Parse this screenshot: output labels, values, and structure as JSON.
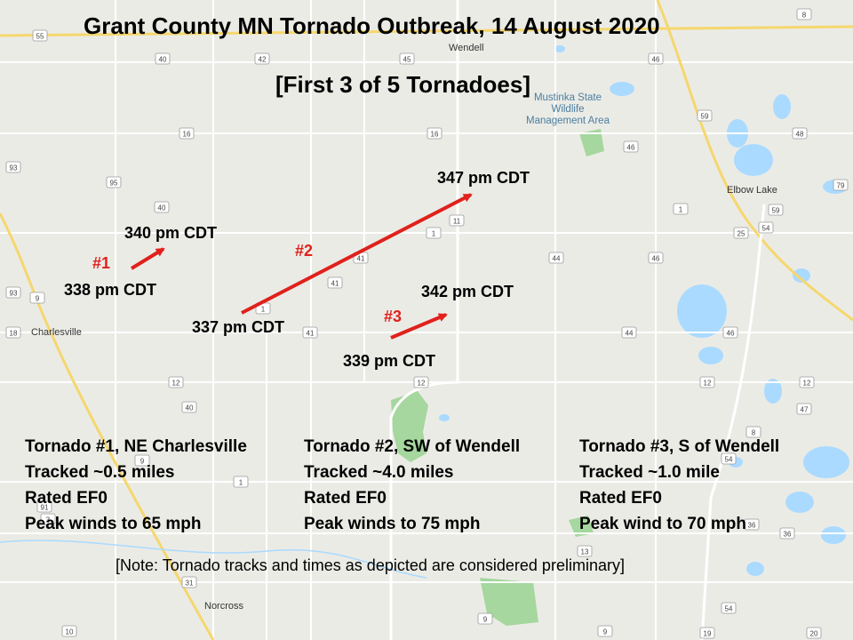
{
  "title": "Grant County MN Tornado Outbreak, 14 August 2020",
  "subtitle": "[First 3 of 5 Tornadoes]",
  "map": {
    "places": [
      "Wendell",
      "Elbow Lake",
      "Charlesville",
      "Norcross",
      "Mustinka State Wildlife Management Area"
    ],
    "road_shields": [
      "55",
      "40",
      "42",
      "45",
      "46",
      "8",
      "16",
      "16",
      "46",
      "59",
      "48",
      "93",
      "95",
      "40",
      "11",
      "1",
      "59",
      "79",
      "1",
      "25",
      "54",
      "41",
      "41",
      "44",
      "46",
      "93",
      "9",
      "18",
      "1",
      "41",
      "44",
      "46",
      "12",
      "12",
      "12",
      "12",
      "40",
      "47",
      "8",
      "9",
      "54",
      "1",
      "91",
      "3",
      "36",
      "36",
      "13",
      "31",
      "54",
      "9",
      "10",
      "9",
      "19",
      "20"
    ],
    "colors": {
      "land": "#ebebe6",
      "road": "#ffffff",
      "highway": "#f5d76e",
      "water": "#aadaff",
      "park": "#a5d79e",
      "track": "#e0211c"
    }
  },
  "tornadoes": [
    {
      "id": "#1",
      "start_time": "338 pm CDT",
      "end_time": "340 pm CDT",
      "heading": "Tornado #1, NE Charlesville",
      "tracked": "Tracked ~0.5 miles",
      "rating": "Rated EF0",
      "peak": "Peak winds to 65 mph"
    },
    {
      "id": "#2",
      "start_time": "337 pm CDT",
      "end_time": "347 pm CDT",
      "heading": "Tornado #2, SW of Wendell",
      "tracked": "Tracked ~4.0 miles",
      "rating": "Rated EF0",
      "peak": "Peak winds to 75 mph"
    },
    {
      "id": "#3",
      "start_time": "339 pm CDT",
      "end_time": "342 pm CDT",
      "heading": "Tornado #3, S of Wendell",
      "tracked": "Tracked ~1.0 mile",
      "rating": "Rated EF0",
      "peak": "Peak wind to 70 mph"
    }
  ],
  "note": "[Note: Tornado tracks and times as depicted are considered preliminary]"
}
